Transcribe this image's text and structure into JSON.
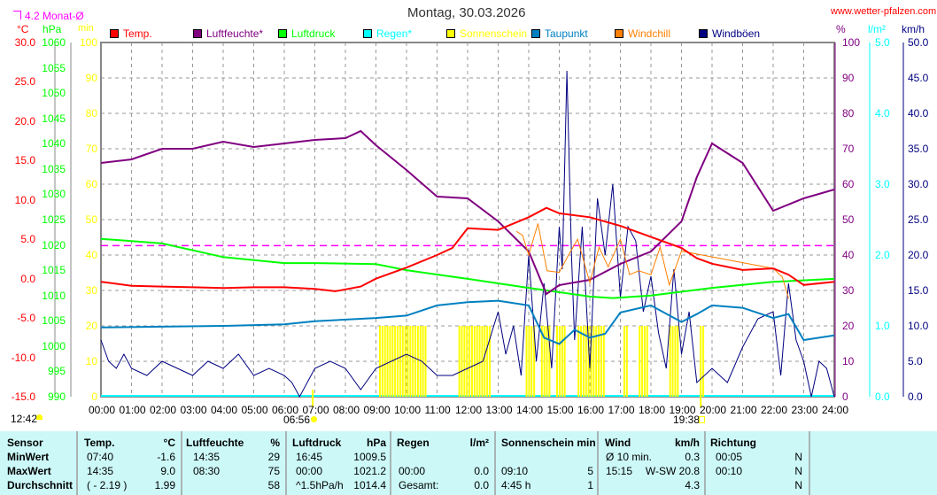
{
  "header": {
    "title": "Montag, 30.03.2026",
    "site": "www.wetter-pfalzen.com",
    "month_avg_label": "4.2 Monat-Ø"
  },
  "colors": {
    "temp": "#ff0000",
    "humidity": "#800080",
    "pressure": "#00ff00",
    "rain": "#00ffff",
    "sun": "#ffff00",
    "dewpoint": "#0080c0",
    "windchill": "#ff8000",
    "gusts": "#000080",
    "month_avg": "#ff00ff"
  },
  "axes": {
    "temp": {
      "unit": "°C",
      "ticks": [
        "30.0",
        "25.0",
        "20.0",
        "15.0",
        "10.0",
        "5.0",
        "0.0",
        "-5.0",
        "-10.0",
        "-15.0"
      ],
      "range": [
        -15,
        30
      ]
    },
    "pressure": {
      "unit": "hPa",
      "ticks": [
        "1060",
        "1055",
        "1050",
        "1045",
        "1040",
        "1035",
        "1030",
        "1025",
        "1020",
        "1015",
        "1010",
        "1005",
        "1000",
        "995",
        "990"
      ],
      "range": [
        990,
        1060
      ]
    },
    "sun": {
      "unit": "min",
      "ticks": [
        "100",
        "90",
        "80",
        "70",
        "60",
        "50",
        "40",
        "30",
        "20",
        "10",
        "0"
      ],
      "range": [
        0,
        100
      ]
    },
    "humidity": {
      "unit": "%",
      "ticks": [
        "100",
        "90",
        "80",
        "70",
        "60",
        "50",
        "40",
        "30",
        "20",
        "10",
        "0"
      ],
      "range": [
        0,
        100
      ]
    },
    "rain": {
      "unit": "l/m²",
      "ticks": [
        "5.0",
        "4.0",
        "3.0",
        "2.0",
        "1.0",
        "0.0"
      ],
      "range": [
        0,
        5
      ]
    },
    "wind": {
      "unit": "km/h",
      "ticks": [
        "50.0",
        "45.0",
        "40.0",
        "35.0",
        "30.0",
        "25.0",
        "20.0",
        "15.0",
        "10.0",
        "5.0",
        "0.0"
      ],
      "range": [
        0,
        50
      ]
    },
    "x": {
      "ticks": [
        "00:00",
        "01:00",
        "02:00",
        "03:00",
        "04:00",
        "05:00",
        "06:00",
        "07:00",
        "08:00",
        "09:00",
        "10:00",
        "11:00",
        "12:00",
        "13:00",
        "14:00",
        "15:00",
        "16:00",
        "17:00",
        "18:00",
        "19:00",
        "20:00",
        "21:00",
        "22:00",
        "23:00",
        "24:00"
      ]
    }
  },
  "astro": {
    "moon": "12:42",
    "sunrise": "06:56",
    "sunset": "19:38"
  },
  "chart_data": {
    "type": "line",
    "title": "Montag, 30.03.2026",
    "xlabel": "Uhrzeit",
    "xlim": [
      0,
      24
    ],
    "legend": [
      "Temp.",
      "Luftfeuchte*",
      "Luftdruck",
      "Regen*",
      "Sonnenschein",
      "Taupunkt",
      "Windchill",
      "Windböen"
    ],
    "month_avg_temp": 4.2,
    "series": [
      {
        "name": "Temp.",
        "key": "temp",
        "axis": "temp",
        "x": [
          0,
          1,
          2,
          3,
          4,
          5,
          6,
          7,
          7.67,
          8.5,
          9,
          10,
          11,
          11.5,
          12,
          13,
          14,
          14.58,
          15,
          16,
          17,
          18,
          19,
          19.5,
          20,
          21,
          22,
          22.5,
          23,
          24
        ],
        "y": [
          -0.4,
          -0.9,
          -1.0,
          -1.1,
          -1.2,
          -1.1,
          -1.1,
          -1.3,
          -1.6,
          -1.0,
          0.0,
          1.4,
          3.0,
          3.9,
          6.4,
          6.2,
          7.8,
          9.0,
          8.3,
          7.8,
          6.7,
          5.3,
          3.9,
          2.6,
          1.9,
          1.1,
          1.3,
          0.5,
          -0.8,
          -0.4
        ]
      },
      {
        "name": "Luftfeuchte*",
        "key": "humidity",
        "axis": "humidity",
        "x": [
          0,
          1,
          2,
          3,
          4,
          5,
          6,
          7,
          8,
          8.5,
          9,
          10,
          11,
          12,
          13,
          14,
          14.58,
          15,
          16,
          17,
          18,
          19,
          19.5,
          20,
          21,
          22,
          23,
          24
        ],
        "y": [
          66,
          67,
          70,
          70,
          72,
          70.5,
          71.5,
          72.5,
          73,
          75,
          71,
          64,
          56.5,
          56,
          49.5,
          41,
          29,
          31.5,
          33,
          37.5,
          41,
          49.5,
          62,
          71.5,
          66,
          52.5,
          56,
          58.5
        ]
      },
      {
        "name": "Luftdruck",
        "key": "pressure",
        "axis": "pressure",
        "x": [
          0,
          2,
          4,
          6,
          7,
          9,
          10,
          12,
          14,
          16,
          16.75,
          18,
          20,
          22,
          24
        ],
        "y": [
          1021.2,
          1020.3,
          1017.6,
          1016.4,
          1016.4,
          1016.2,
          1015.0,
          1013.3,
          1011.5,
          1009.8,
          1009.5,
          1010.0,
          1011.5,
          1012.7,
          1013.3
        ]
      },
      {
        "name": "Taupunkt",
        "key": "dewpoint",
        "axis": "temp",
        "x": [
          0,
          2,
          4,
          6,
          7,
          9,
          10,
          11,
          12,
          13,
          14,
          14.5,
          15,
          15.5,
          16,
          16.5,
          17,
          18,
          19,
          19.5,
          20,
          21,
          22,
          22.5,
          23,
          24
        ],
        "y": [
          -6.2,
          -6.1,
          -6.0,
          -5.8,
          -5.4,
          -5.0,
          -4.7,
          -3.4,
          -3.0,
          -2.8,
          -3.4,
          -7.5,
          -8.3,
          -6.5,
          -7.5,
          -7.0,
          -4.3,
          -3.4,
          -5.5,
          -4.5,
          -3.4,
          -3.7,
          -5.0,
          -4.5,
          -7.8,
          -7.2
        ]
      },
      {
        "name": "Windchill",
        "key": "windchill",
        "axis": "temp",
        "x": [
          13.6,
          13.8,
          14,
          14.3,
          14.6,
          15,
          15.3,
          15.6,
          16,
          16.3,
          16.6,
          17,
          17.3,
          17.6,
          18,
          18.3,
          18.6,
          19,
          22,
          22.3,
          22.5
        ],
        "y": [
          6,
          5.5,
          3,
          7,
          1,
          0.8,
          3,
          5,
          -0.5,
          4,
          1.5,
          5,
          0.5,
          1,
          0.5,
          4,
          -0.8,
          3.5,
          1.3,
          0.2,
          -2.5
        ]
      },
      {
        "name": "Windböen",
        "key": "gusts",
        "axis": "wind",
        "x": [
          0,
          0.25,
          0.5,
          0.75,
          1,
          1.5,
          2,
          2.5,
          3,
          3.5,
          4,
          4.5,
          5,
          5.5,
          6,
          6.25,
          6.5,
          7,
          7.5,
          8,
          8.5,
          9,
          9.5,
          10,
          10.5,
          11,
          11.5,
          12,
          12.5,
          13,
          13.25,
          13.5,
          13.75,
          14,
          14.25,
          14.5,
          14.75,
          15,
          15.1,
          15.25,
          15.4,
          15.5,
          15.75,
          16,
          16.25,
          16.5,
          16.75,
          17,
          17.25,
          17.5,
          17.75,
          18,
          18.25,
          18.5,
          18.75,
          19,
          19.25,
          19.5,
          20,
          20.5,
          21,
          21.5,
          22,
          22.25,
          22.5,
          22.75,
          23,
          23.25,
          23.5,
          23.75,
          24
        ],
        "y": [
          8,
          5,
          4,
          6,
          4,
          3,
          5,
          4,
          3,
          5,
          4,
          6,
          3,
          4,
          3,
          2,
          0,
          4,
          5,
          4,
          1,
          4,
          5,
          6,
          5,
          3,
          3,
          4,
          5,
          12,
          6,
          10,
          3,
          20,
          5,
          16,
          4,
          24,
          18,
          46,
          20,
          8,
          24,
          4,
          28,
          20,
          30,
          14,
          24,
          22,
          12,
          17,
          9,
          4,
          18,
          6,
          12,
          2,
          4,
          2,
          7,
          11,
          12,
          3,
          16,
          8,
          5,
          0,
          5,
          4,
          0
        ]
      },
      {
        "name": "Regen*",
        "key": "rain",
        "axis": "rain",
        "x": [
          0,
          24
        ],
        "y": [
          0,
          0
        ]
      }
    ],
    "sunshine": {
      "name": "Sonnenschein",
      "axis": "sun",
      "minutes_per_bar": 5,
      "intervals": [
        [
          9.1,
          10.6
        ],
        [
          11.7,
          12.7
        ],
        [
          13.9,
          14.15
        ],
        [
          14.4,
          14.65
        ],
        [
          14.9,
          15.15
        ],
        [
          15.6,
          16.45
        ],
        [
          17.1,
          17.2
        ],
        [
          17.6,
          17.85
        ],
        [
          18.6,
          18.9
        ],
        [
          19.6,
          19.75
        ]
      ]
    }
  },
  "table": {
    "headers": {
      "sensor": "Sensor",
      "temp": "Temp.",
      "temp_unit": "°C",
      "hum": "Luftfeuchte",
      "hum_unit": "%",
      "press": "Luftdruck",
      "press_unit": "hPa",
      "rain": "Regen",
      "rain_unit": "l/m²",
      "sun": "Sonnenschein min",
      "wind": "Wind",
      "wind_unit": "km/h",
      "dir": "Richtung"
    },
    "rows": [
      {
        "label": "MinWert",
        "temp_time": "07:40",
        "temp": "-1.6",
        "hum_time": "14:35",
        "hum": "29",
        "press_time": "16:45",
        "press": "1009.5",
        "rain_time": "",
        "rain": "",
        "sun_time": "",
        "sun": "",
        "wind_time": "Ø 10 min.",
        "wind": "0.3",
        "dir_time": "00:05",
        "dir": "N"
      },
      {
        "label": "MaxWert",
        "temp_time": "14:35",
        "temp": "9.0",
        "hum_time": "08:30",
        "hum": "75",
        "press_time": "00:00",
        "press": "1021.2",
        "rain_time": "00:00",
        "rain": "0.0",
        "sun_time": "09:10",
        "sun": "5",
        "wind_time": "15:15",
        "wind": "W-SW 20.8",
        "dir_time": "00:10",
        "dir": "N"
      },
      {
        "label": "Durchschnitt",
        "temp_time": "( - 2.19 )",
        "temp": "1.99",
        "hum_time": "",
        "hum": "58",
        "press_time": "^1.5hPa/h",
        "press": "1014.4",
        "rain_time": "Gesamt:",
        "rain": "0.0",
        "sun_time": "4:45 h",
        "sun": "1",
        "wind_time": "",
        "wind": "4.3",
        "dir_time": "",
        "dir": "N"
      }
    ]
  }
}
